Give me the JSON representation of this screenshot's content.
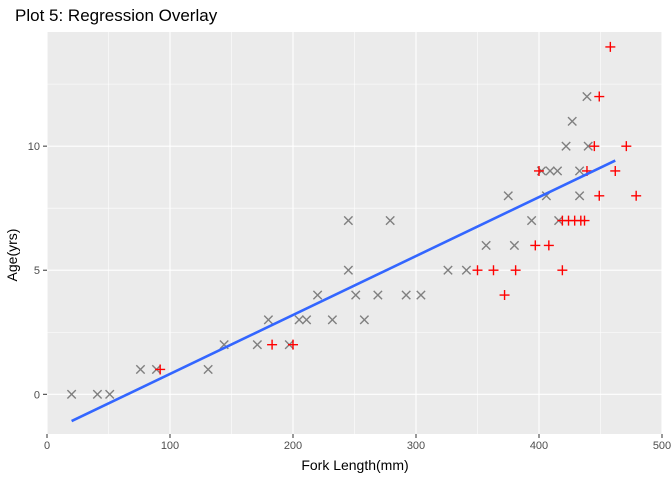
{
  "chart_data": {
    "type": "scatter",
    "title": "Plot 5: Regression Overlay",
    "xlabel": "Fork Length(mm)",
    "ylabel": "Age(yrs)",
    "xlim": [
      0,
      500
    ],
    "ylim": [
      -1.6,
      14.6
    ],
    "x_ticks": [
      0,
      100,
      200,
      300,
      400,
      500
    ],
    "y_ticks": [
      0,
      5,
      10
    ],
    "grid": true,
    "legend": "none",
    "colors": {
      "panel": "#ebebeb",
      "grid": "#ffffff",
      "x_marker": "#808080",
      "plus_marker": "#ff0000",
      "regression_line": "#3366ff"
    },
    "series": [
      {
        "marker": "x",
        "color": "#808080",
        "points": [
          [
            20,
            0
          ],
          [
            41,
            0
          ],
          [
            51,
            0
          ],
          [
            76,
            1
          ],
          [
            89,
            1
          ],
          [
            131,
            1
          ],
          [
            144,
            2
          ],
          [
            171,
            2
          ],
          [
            180,
            3
          ],
          [
            197,
            2
          ],
          [
            205,
            3
          ],
          [
            211,
            3
          ],
          [
            220,
            4
          ],
          [
            232,
            3
          ],
          [
            245,
            7
          ],
          [
            245,
            5
          ],
          [
            251,
            4
          ],
          [
            258,
            3
          ],
          [
            269,
            4
          ],
          [
            279,
            7
          ],
          [
            292,
            4
          ],
          [
            304,
            4
          ],
          [
            326,
            5
          ],
          [
            341,
            5
          ],
          [
            357,
            6
          ],
          [
            375,
            8
          ],
          [
            380,
            6
          ],
          [
            394,
            7
          ],
          [
            402,
            9
          ],
          [
            406,
            8
          ],
          [
            409,
            9
          ],
          [
            415,
            9
          ],
          [
            416,
            7
          ],
          [
            422,
            10
          ],
          [
            427,
            11
          ],
          [
            433,
            9
          ],
          [
            433,
            8
          ],
          [
            439,
            12
          ],
          [
            440,
            10
          ]
        ]
      },
      {
        "marker": "plus",
        "color": "#ff0000",
        "points": [
          [
            92,
            1
          ],
          [
            183,
            2
          ],
          [
            200,
            2
          ],
          [
            350,
            5
          ],
          [
            363,
            5
          ],
          [
            372,
            4
          ],
          [
            381,
            5
          ],
          [
            397,
            6
          ],
          [
            400,
            9
          ],
          [
            408,
            6
          ],
          [
            419,
            5
          ],
          [
            419,
            7
          ],
          [
            424,
            7
          ],
          [
            429,
            7
          ],
          [
            434,
            7
          ],
          [
            437,
            7
          ],
          [
            439,
            9
          ],
          [
            445,
            10
          ],
          [
            449,
            8
          ],
          [
            449,
            12
          ],
          [
            458,
            14
          ],
          [
            462,
            9
          ],
          [
            471,
            10
          ],
          [
            479,
            8
          ]
        ]
      }
    ],
    "regression_line": {
      "x": [
        20,
        462
      ],
      "y": [
        -1.08,
        9.42
      ]
    }
  }
}
